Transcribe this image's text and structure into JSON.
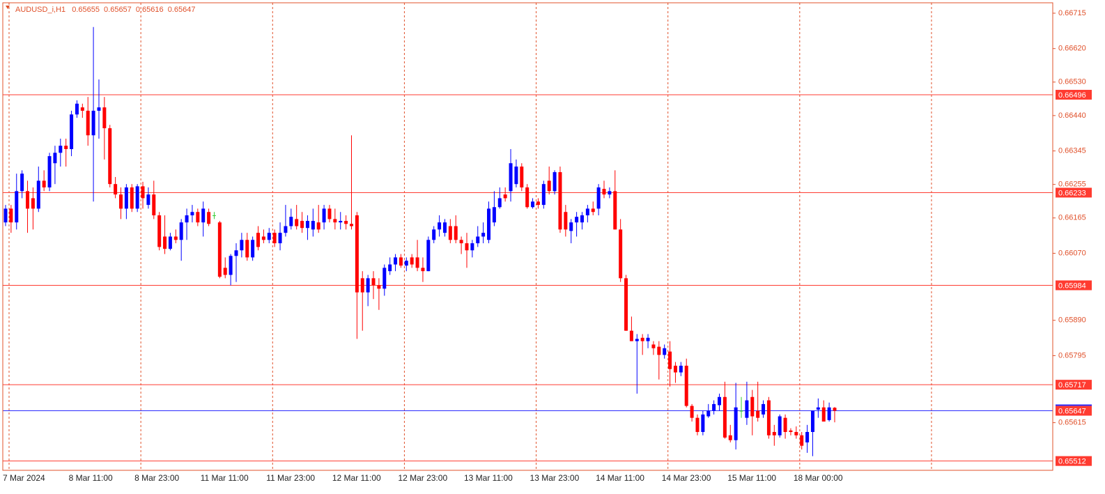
{
  "chart_data": {
    "type": "candlestick",
    "title": "AUDUSD_i,H1",
    "categories": [
      "7 Mar 2024",
      null,
      null,
      null,
      null,
      null,
      null,
      null,
      null,
      null,
      null,
      null,
      "8 Mar 11:00",
      null,
      null,
      null,
      null,
      null,
      null,
      null,
      null,
      null,
      null,
      null,
      "8 Mar 23:00",
      null,
      null,
      null,
      null,
      null,
      null,
      null,
      null,
      null,
      null,
      null,
      "11 Mar 11:00",
      null,
      null,
      null,
      null,
      null,
      null,
      null,
      null,
      null,
      null,
      null,
      "11 Mar 23:00",
      null,
      null,
      null,
      null,
      null,
      null,
      null,
      null,
      null,
      null,
      null,
      "12 Mar 11:00",
      null,
      null,
      null,
      null,
      null,
      null,
      null,
      null,
      null,
      null,
      null,
      "12 Mar 23:00",
      null,
      null,
      null,
      null,
      null,
      null,
      null,
      null,
      null,
      null,
      null,
      "13 Mar 11:00",
      null,
      null,
      null,
      null,
      null,
      null,
      null,
      null,
      null,
      null,
      null,
      "13 Mar 23:00",
      null,
      null,
      null,
      null,
      null,
      null,
      null,
      null,
      null,
      null,
      null,
      "14 Mar 11:00",
      null,
      null,
      null,
      null,
      null,
      null,
      null,
      null,
      null,
      null,
      null,
      "14 Mar 23:00",
      null,
      null,
      null,
      null,
      null,
      null,
      null,
      null,
      null,
      null,
      null,
      "15 Mar 11:00",
      null,
      null,
      null,
      null,
      null,
      null,
      null,
      null,
      null,
      null,
      null,
      "18 Mar 00:00",
      null,
      null,
      null,
      null,
      null,
      null,
      null
    ],
    "ohlc": [
      [
        0.66153,
        0.662,
        0.66143,
        0.6619
      ],
      [
        0.6619,
        0.662,
        0.66125,
        0.66153
      ],
      [
        0.66153,
        0.66284,
        0.66134,
        0.66237
      ],
      [
        0.66237,
        0.66293,
        0.66218,
        0.66284
      ],
      [
        0.66237,
        0.66265,
        0.66125,
        0.6619
      ],
      [
        0.66218,
        0.66247,
        0.66134,
        0.6619
      ],
      [
        0.6619,
        0.66303,
        0.66181,
        0.66265
      ],
      [
        0.66265,
        0.66293,
        0.66237,
        0.66247
      ],
      [
        0.66247,
        0.6634,
        0.66237,
        0.66331
      ],
      [
        0.66312,
        0.66359,
        0.66256,
        0.6634
      ],
      [
        0.6634,
        0.66378,
        0.66303,
        0.66359
      ],
      [
        0.66359,
        0.66378,
        0.66303,
        0.6635
      ],
      [
        0.6635,
        0.66453,
        0.66331,
        0.66443
      ],
      [
        0.66443,
        0.66481,
        0.66434,
        0.66472
      ],
      [
        0.66462,
        0.66472,
        0.66434,
        0.66453
      ],
      [
        0.66453,
        0.6649,
        0.66359,
        0.66387
      ],
      [
        0.66387,
        0.66678,
        0.66209,
        0.66453
      ],
      [
        0.66453,
        0.66537,
        0.66378,
        0.66462
      ],
      [
        0.66462,
        0.6649,
        0.66322,
        0.66406
      ],
      [
        0.66406,
        0.66415,
        0.66247,
        0.66256
      ],
      [
        0.66256,
        0.66275,
        0.66218,
        0.66228
      ],
      [
        0.66228,
        0.66247,
        0.66162,
        0.6619
      ],
      [
        0.6619,
        0.66256,
        0.66162,
        0.66247
      ],
      [
        0.66247,
        0.66256,
        0.66181,
        0.6619
      ],
      [
        0.6619,
        0.66256,
        0.66181,
        0.6625
      ],
      [
        0.6625,
        0.66262,
        0.6619,
        0.66218
      ],
      [
        0.662,
        0.66247,
        0.6619,
        0.66228
      ],
      [
        0.66228,
        0.66265,
        0.66162,
        0.66172
      ],
      [
        0.66172,
        0.66181,
        0.66078,
        0.66087
      ],
      [
        0.66115,
        0.66172,
        0.66068,
        0.66082
      ],
      [
        0.66082,
        0.66125,
        0.66078,
        0.66115
      ],
      [
        0.66115,
        0.66134,
        0.66097,
        0.66106
      ],
      [
        0.66106,
        0.66162,
        0.6605,
        0.66153
      ],
      [
        0.66153,
        0.6619,
        0.66106,
        0.66172
      ],
      [
        0.66172,
        0.662,
        0.66153,
        0.66181
      ],
      [
        0.66181,
        0.6619,
        0.66143,
        0.66153
      ],
      [
        0.66153,
        0.66209,
        0.66115,
        0.6619
      ],
      [
        0.66181,
        0.6619,
        0.66143,
        0.66149
      ],
      [
        0.66172,
        0.66181,
        0.66162,
        0.66172
      ],
      [
        0.66153,
        0.66157,
        0.66003,
        0.66007
      ],
      [
        0.66031,
        0.66059,
        0.66003,
        0.66012
      ],
      [
        0.66012,
        0.66068,
        0.65984,
        0.66063
      ],
      [
        0.66063,
        0.66097,
        0.65993,
        0.66078
      ],
      [
        0.66078,
        0.66125,
        0.66059,
        0.66106
      ],
      [
        0.66106,
        0.66125,
        0.6605,
        0.66059
      ],
      [
        0.66059,
        0.66115,
        0.6605,
        0.66106
      ],
      [
        0.66125,
        0.66143,
        0.66078,
        0.66087
      ],
      [
        0.66115,
        0.66134,
        0.66097,
        0.66106
      ],
      [
        0.66106,
        0.66138,
        0.66097,
        0.66125
      ],
      [
        0.66125,
        0.66134,
        0.66087,
        0.66097
      ],
      [
        0.66097,
        0.66153,
        0.66078,
        0.66125
      ],
      [
        0.66125,
        0.662,
        0.66115,
        0.66143
      ],
      [
        0.66143,
        0.6619,
        0.66134,
        0.66168
      ],
      [
        0.66162,
        0.662,
        0.66134,
        0.66143
      ],
      [
        0.66157,
        0.66181,
        0.66125,
        0.66138
      ],
      [
        0.66138,
        0.66172,
        0.66106,
        0.66157
      ],
      [
        0.66134,
        0.6619,
        0.66115,
        0.66157
      ],
      [
        0.66153,
        0.662,
        0.66125,
        0.66134
      ],
      [
        0.66153,
        0.662,
        0.66134,
        0.6619
      ],
      [
        0.6619,
        0.662,
        0.66153,
        0.66162
      ],
      [
        0.66162,
        0.6619,
        0.66134,
        0.66153
      ],
      [
        0.66153,
        0.66181,
        0.66134,
        0.66157
      ],
      [
        0.66157,
        0.66172,
        0.66134,
        0.66149
      ],
      [
        0.66149,
        0.66387,
        0.66134,
        0.66143
      ],
      [
        0.66172,
        0.66181,
        0.6584,
        0.65965
      ],
      [
        0.66003,
        0.66022,
        0.65862,
        0.65965
      ],
      [
        0.65965,
        0.66012,
        0.65928,
        0.66003
      ],
      [
        0.66003,
        0.66022,
        0.65947,
        0.65984
      ],
      [
        0.65984,
        0.66003,
        0.65918,
        0.65975
      ],
      [
        0.65975,
        0.6604,
        0.65956,
        0.66031
      ],
      [
        0.66022,
        0.66059,
        0.66012,
        0.6604
      ],
      [
        0.6604,
        0.66068,
        0.66022,
        0.66059
      ],
      [
        0.66059,
        0.66068,
        0.66031,
        0.66037
      ],
      [
        0.66037,
        0.66059,
        0.66022,
        0.6605
      ],
      [
        0.66059,
        0.66068,
        0.66031,
        0.6604
      ],
      [
        0.66059,
        0.66106,
        0.66022,
        0.66031
      ],
      [
        0.66031,
        0.66059,
        0.65993,
        0.66022
      ],
      [
        0.66022,
        0.66115,
        0.66022,
        0.66106
      ],
      [
        0.66106,
        0.66143,
        0.66097,
        0.66134
      ],
      [
        0.66134,
        0.66172,
        0.66115,
        0.66153
      ],
      [
        0.66125,
        0.66162,
        0.66115,
        0.66153
      ],
      [
        0.66143,
        0.66162,
        0.66097,
        0.66106
      ],
      [
        0.66143,
        0.66172,
        0.66097,
        0.66106
      ],
      [
        0.66106,
        0.66115,
        0.66068,
        0.66097
      ],
      [
        0.66097,
        0.66125,
        0.66031,
        0.66078
      ],
      [
        0.66078,
        0.66106,
        0.66059,
        0.66097
      ],
      [
        0.66097,
        0.66143,
        0.66087,
        0.66115
      ],
      [
        0.66115,
        0.66153,
        0.66097,
        0.66125
      ],
      [
        0.66106,
        0.66209,
        0.66097,
        0.6619
      ],
      [
        0.66153,
        0.66237,
        0.66143,
        0.66194
      ],
      [
        0.66194,
        0.66247,
        0.6619,
        0.66218
      ],
      [
        0.66228,
        0.66247,
        0.66209,
        0.66218
      ],
      [
        0.66237,
        0.6635,
        0.66209,
        0.66312
      ],
      [
        0.66256,
        0.66322,
        0.66247,
        0.66303
      ],
      [
        0.66303,
        0.66312,
        0.66237,
        0.66247
      ],
      [
        0.66247,
        0.66256,
        0.6619,
        0.66194
      ],
      [
        0.66194,
        0.66218,
        0.6619,
        0.66209
      ],
      [
        0.66209,
        0.66218,
        0.6619,
        0.662
      ],
      [
        0.662,
        0.66265,
        0.6619,
        0.66256
      ],
      [
        0.66265,
        0.66303,
        0.66228,
        0.66237
      ],
      [
        0.66237,
        0.66293,
        0.66228,
        0.66288
      ],
      [
        0.66288,
        0.66303,
        0.66125,
        0.66134
      ],
      [
        0.66181,
        0.662,
        0.66115,
        0.66134
      ],
      [
        0.6613,
        0.66162,
        0.66097,
        0.66153
      ],
      [
        0.66153,
        0.66181,
        0.66115,
        0.66168
      ],
      [
        0.66153,
        0.66181,
        0.66134,
        0.66172
      ],
      [
        0.66172,
        0.662,
        0.66153,
        0.6619
      ],
      [
        0.6619,
        0.66209,
        0.66172,
        0.66181
      ],
      [
        0.6619,
        0.66256,
        0.66172,
        0.66247
      ],
      [
        0.66243,
        0.66265,
        0.66218,
        0.66228
      ],
      [
        0.66228,
        0.66247,
        0.66218,
        0.66237
      ],
      [
        0.66237,
        0.66293,
        0.66134,
        0.66134
      ],
      [
        0.66134,
        0.66162,
        0.65993,
        0.66003
      ],
      [
        0.66003,
        0.66012,
        0.65862,
        0.65862
      ],
      [
        0.65862,
        0.659,
        0.65834,
        0.65834
      ],
      [
        0.65834,
        0.65853,
        0.65693,
        0.6584
      ],
      [
        0.65843,
        0.65853,
        0.65797,
        0.65834
      ],
      [
        0.65834,
        0.65853,
        0.65815,
        0.65843
      ],
      [
        0.65825,
        0.65834,
        0.65797,
        0.65815
      ],
      [
        0.65819,
        0.65834,
        0.65731,
        0.65797
      ],
      [
        0.65797,
        0.65825,
        0.65787,
        0.65815
      ],
      [
        0.65806,
        0.65834,
        0.65712,
        0.65759
      ],
      [
        0.65768,
        0.65778,
        0.65722,
        0.6575
      ],
      [
        0.6575,
        0.65778,
        0.6574,
        0.65768
      ],
      [
        0.65768,
        0.65787,
        0.65656,
        0.6566
      ],
      [
        0.6566,
        0.65665,
        0.65618,
        0.65628
      ],
      [
        0.65628,
        0.65637,
        0.65581,
        0.6559
      ],
      [
        0.6559,
        0.65647,
        0.65581,
        0.65637
      ],
      [
        0.65632,
        0.65665,
        0.65628,
        0.65647
      ],
      [
        0.65647,
        0.65675,
        0.65637,
        0.65665
      ],
      [
        0.65662,
        0.65693,
        0.65647,
        0.65684
      ],
      [
        0.65684,
        0.65725,
        0.65572,
        0.65575
      ],
      [
        0.65581,
        0.65609,
        0.65562,
        0.65568
      ],
      [
        0.65568,
        0.65722,
        0.65543,
        0.65656
      ],
      [
        0.65647,
        0.65684,
        0.65628,
        0.65647
      ],
      [
        0.65628,
        0.65725,
        0.65609,
        0.65675
      ],
      [
        0.65684,
        0.65703,
        0.65581,
        0.65632
      ],
      [
        0.65647,
        0.65725,
        0.65618,
        0.65628
      ],
      [
        0.65637,
        0.65675,
        0.65628,
        0.65665
      ],
      [
        0.65675,
        0.65684,
        0.65572,
        0.65581
      ],
      [
        0.6559,
        0.65609,
        0.65553,
        0.65581
      ],
      [
        0.65581,
        0.65637,
        0.65575,
        0.65632
      ],
      [
        0.65628,
        0.65637,
        0.65572,
        0.6559
      ],
      [
        0.65594,
        0.656,
        0.65581,
        0.6559
      ],
      [
        0.6559,
        0.65605,
        0.65572,
        0.65581
      ],
      [
        0.65581,
        0.6559,
        0.65543,
        0.65553
      ],
      [
        0.65562,
        0.65609,
        0.65534,
        0.6559
      ],
      [
        0.6559,
        0.65647,
        0.65525,
        0.65647
      ],
      [
        0.6565,
        0.6568,
        0.65628,
        0.65656
      ],
      [
        0.65656,
        0.65675,
        0.65618,
        0.65618
      ],
      [
        0.65622,
        0.65669,
        0.65618,
        0.65656
      ],
      [
        0.65655,
        0.65657,
        0.65616,
        0.65647
      ]
    ],
    "ylim": [
      0.65487,
      0.66743
    ],
    "yticks": [
      0.66715,
      {
        "value": 0.6662,
        "label": "0.66620"
      },
      {
        "value": 0.6653,
        "label": "0.66530"
      },
      {
        "value": 0.6644,
        "label": "0.66440"
      },
      0.66345,
      0.66255,
      0.66165,
      {
        "value": 0.6607,
        "label": "0.66070"
      },
      {
        "value": 0.6589,
        "label": "0.65890"
      },
      0.65795,
      0.65615
    ],
    "levels": [
      0.66496,
      0.66233,
      0.65984,
      0.65717,
      0.65512
    ],
    "bull_color": "#0000ff",
    "bear_color": "#ff0000",
    "doji_color": "#32cd32",
    "level_color": "#ff3b30",
    "price_line_color": "#2a2aff",
    "grid": true
  }
}
